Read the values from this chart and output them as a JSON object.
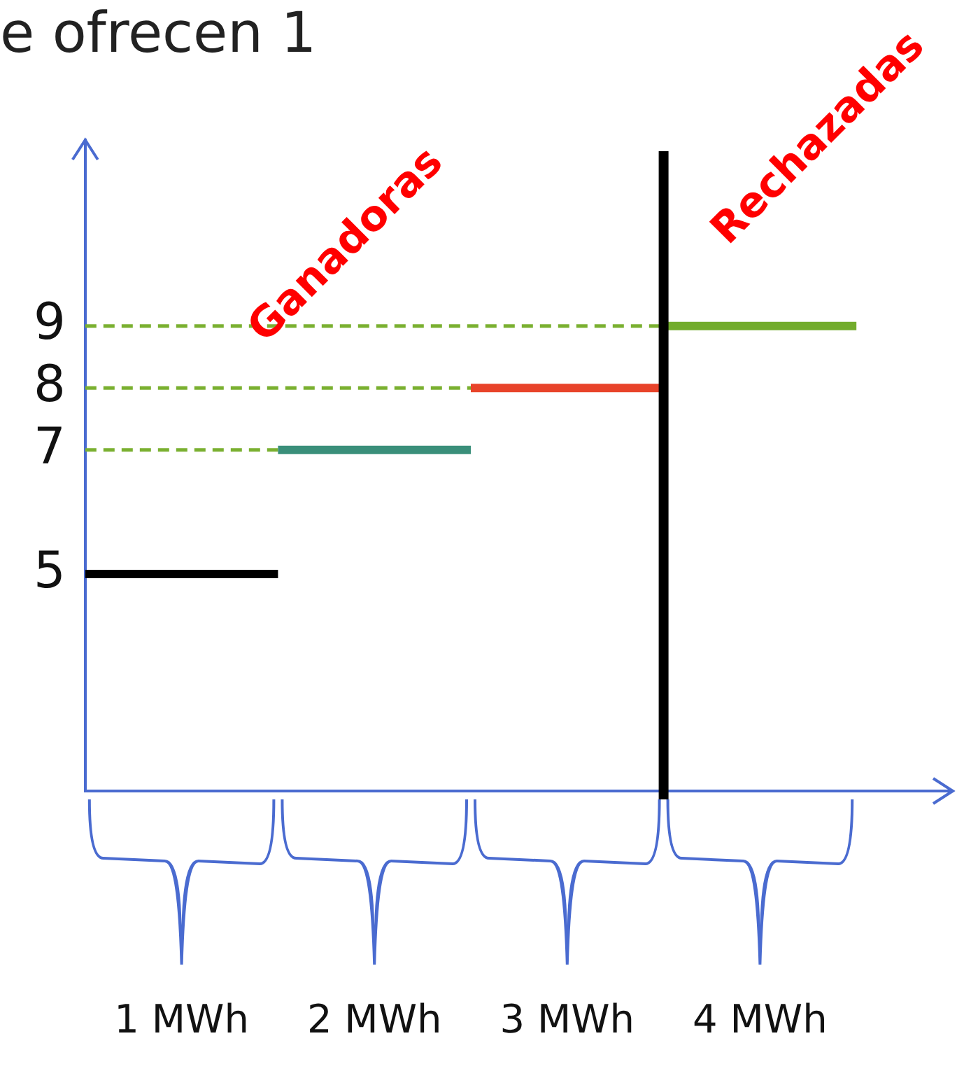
{
  "chart_data": {
    "type": "line",
    "title": "e ofrecen 1",
    "xlim": [
      0,
      4.5
    ],
    "xticks": [
      {
        "value": 0.5,
        "label": "1 MWh"
      },
      {
        "value": 1.5,
        "label": "2 MWh"
      },
      {
        "value": 2.5,
        "label": "3 MWh"
      },
      {
        "value": 3.5,
        "label": "4 MWh"
      }
    ],
    "ylim": [
      1.5,
      12
    ],
    "yticks": [
      5,
      7,
      8,
      9
    ],
    "series": [
      {
        "color": "#000000",
        "x": [
          0,
          1
        ],
        "values": [
          5,
          5
        ]
      },
      {
        "color": "#3a8f7a",
        "x": [
          1,
          2
        ],
        "values": [
          7,
          7
        ]
      },
      {
        "color": "#e8432a",
        "x": [
          2,
          3
        ],
        "values": [
          8,
          8
        ]
      },
      {
        "color": "#72ac2c",
        "x": [
          3,
          4
        ],
        "values": [
          9,
          9
        ]
      },
      {
        "color": "#7ab030",
        "x": [
          0,
          1
        ],
        "values": [
          7,
          7
        ],
        "line_style": "dashed"
      },
      {
        "color": "#7ab030",
        "x": [
          0,
          2
        ],
        "values": [
          8,
          8
        ],
        "line_style": "dashed"
      },
      {
        "color": "#7ab030",
        "x": [
          0,
          3
        ],
        "values": [
          9,
          9
        ],
        "line_style": "dashed"
      }
    ],
    "ref_lines": [
      {
        "axis": "x",
        "value": 3,
        "color": "#000000"
      }
    ],
    "annotations": [
      "Ganadoras",
      "Rechazadas"
    ],
    "grid": false,
    "legend": false,
    "marker": "none"
  }
}
